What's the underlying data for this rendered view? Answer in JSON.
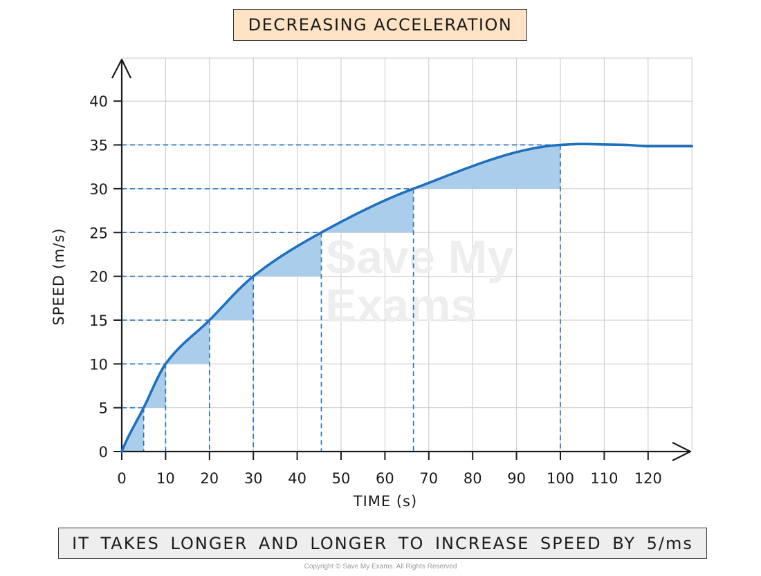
{
  "title": "DECREASING ACCELERATION",
  "caption": "IT TAKES LONGER AND LONGER TO INCREASE SPEED BY 5/ms",
  "copyright": "Copyright © Save My Exams. All Rights Reserved",
  "watermark": [
    "Save My",
    "Exams"
  ],
  "colors": {
    "curve": "#1f6fbf",
    "shade": "#a9cdea",
    "dashes": "#1f6fbf",
    "grid": "#c8c8c8",
    "title_bg": "#fde3c4",
    "caption_bg": "#eeeeee"
  },
  "chart_data": {
    "type": "line",
    "xlabel": "TIME (s)",
    "ylabel": "SPEED (m/s)",
    "xlim": [
      0,
      130
    ],
    "ylim": [
      0,
      45
    ],
    "xticks": [
      0,
      10,
      20,
      30,
      40,
      50,
      60,
      70,
      80,
      90,
      100,
      110,
      120
    ],
    "yticks": [
      0,
      5,
      10,
      15,
      20,
      25,
      30,
      35,
      40
    ],
    "grid": true,
    "series": [
      {
        "x": [
          0,
          5,
          10,
          20,
          30,
          45.5,
          66.5,
          100,
          105,
          110,
          115,
          120,
          130
        ],
        "y": [
          0,
          5,
          10,
          15,
          20,
          25,
          30,
          35,
          35.1,
          35.05,
          35,
          34.85,
          34.85
        ]
      }
    ],
    "marked_points": [
      {
        "t": 5,
        "v": 5
      },
      {
        "t": 10,
        "v": 10
      },
      {
        "t": 20,
        "v": 15
      },
      {
        "t": 30,
        "v": 20
      },
      {
        "t": 45.5,
        "v": 25
      },
      {
        "t": 66.5,
        "v": 30
      },
      {
        "t": 100,
        "v": 35
      }
    ]
  }
}
